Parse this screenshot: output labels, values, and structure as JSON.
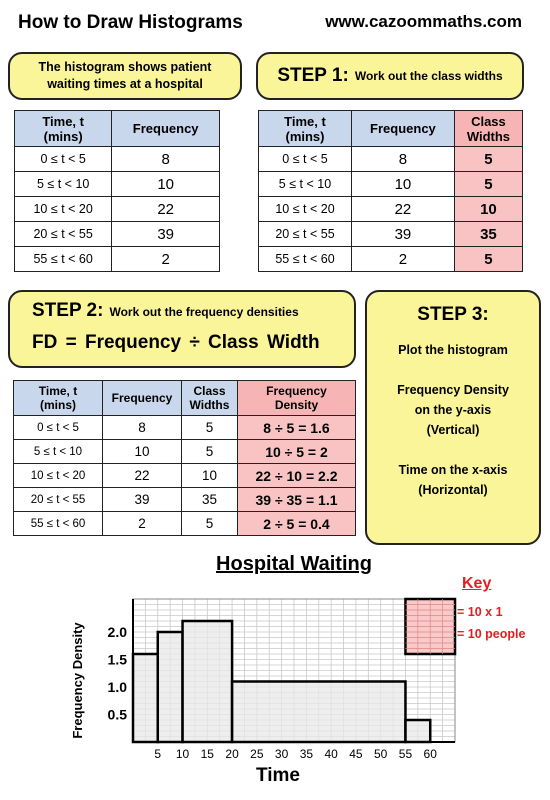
{
  "header": {
    "title": "How to Draw Histograms",
    "url": "www.cazoommaths.com"
  },
  "intro": {
    "text_line1": "The histogram shows patient",
    "text_line2": "waiting times at a hospital"
  },
  "step1": {
    "label": "STEP 1:",
    "text": "Work out the class widths"
  },
  "step2": {
    "label": "STEP 2:",
    "text": "Work out the frequency densities",
    "formula": "FD =  Frequency ÷ Class Width"
  },
  "step3": {
    "label": "STEP 3:",
    "lines": [
      "Plot the histogram",
      "",
      "Frequency Density",
      "on the y-axis",
      "(Vertical)",
      "",
      "Time on the x-axis",
      "(Horizontal)"
    ]
  },
  "headers": {
    "time_line1": "Time, t",
    "time_line2": "(mins)",
    "frequency": "Frequency",
    "class_line1": "Class",
    "class_line2": "Widths",
    "fd_line1": "Frequency",
    "fd_line2": "Density"
  },
  "rows": [
    {
      "cls": "0 ≤ t < 5",
      "freq": "8",
      "width": "5",
      "fd": "8 ÷ 5 = 1.6"
    },
    {
      "cls": "5 ≤ t < 10",
      "freq": "10",
      "width": "5",
      "fd": "10 ÷ 5 = 2"
    },
    {
      "cls": "10 ≤ t < 20",
      "freq": "22",
      "width": "10",
      "fd": "22 ÷ 10 = 2.2"
    },
    {
      "cls": "20 ≤ t < 55",
      "freq": "39",
      "width": "35",
      "fd": "39 ÷ 35 = 1.1"
    },
    {
      "cls": "55 ≤ t < 60",
      "freq": "2",
      "width": "5",
      "fd": "2 ÷ 5 = 0.4"
    }
  ],
  "key": {
    "title": "Key",
    "line1": "= 10 x 1",
    "line2": "= 10 people"
  },
  "colors": {
    "yellow_box": "#fbf59a",
    "table_header": "#c9d7ec",
    "pink": "#f9c3c3",
    "key_red": "#e02020",
    "bar_fill": "#e8e8e8"
  },
  "chart_data": {
    "type": "bar",
    "title": "Hospital Waiting",
    "xlabel": "Time",
    "ylabel": "Frequency Density",
    "bins": [
      {
        "start": 0,
        "end": 5,
        "value": 1.6
      },
      {
        "start": 5,
        "end": 10,
        "value": 2.0
      },
      {
        "start": 10,
        "end": 20,
        "value": 2.2
      },
      {
        "start": 20,
        "end": 55,
        "value": 1.1
      },
      {
        "start": 55,
        "end": 60,
        "value": 0.4
      }
    ],
    "x_ticks": [
      "5",
      "10",
      "15",
      "20",
      "25",
      "30",
      "35",
      "40",
      "45",
      "50",
      "55",
      "60"
    ],
    "y_ticks": [
      "0.5",
      "1.0",
      "1.5",
      "2.0"
    ],
    "xlim": [
      0,
      65
    ],
    "ylim": [
      0,
      2.6
    ],
    "grid": true,
    "key_block": {
      "x_start": 55,
      "x_end": 65,
      "y_start": 1.6,
      "y_end": 2.6
    }
  }
}
